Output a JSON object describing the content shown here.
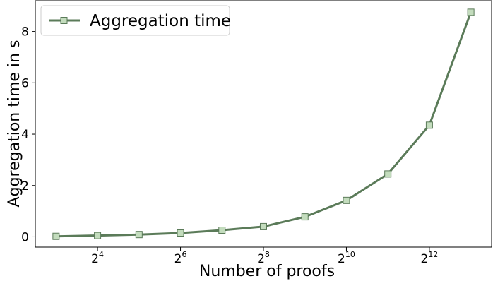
{
  "chart_data": {
    "type": "line",
    "xlabel": "Number of proofs",
    "ylabel": "Aggregation time in s",
    "x_scale": "log2",
    "x": [
      8,
      16,
      32,
      64,
      128,
      256,
      512,
      1024,
      2048,
      4096,
      8192
    ],
    "x_ticks": [
      {
        "base": "2",
        "exp": "4"
      },
      {
        "base": "2",
        "exp": "6"
      },
      {
        "base": "2",
        "exp": "8"
      },
      {
        "base": "2",
        "exp": "10"
      },
      {
        "base": "2",
        "exp": "12"
      }
    ],
    "y_ticks": [
      "0",
      "2",
      "4",
      "6",
      "8"
    ],
    "ylim": [
      -0.4,
      9.2
    ],
    "series": [
      {
        "name": "Aggregation time",
        "values": [
          0.02,
          0.05,
          0.09,
          0.15,
          0.26,
          0.4,
          0.78,
          1.42,
          2.45,
          4.35,
          8.75
        ]
      }
    ],
    "legend_position": "top-left",
    "grid": false,
    "colors": {
      "line": "#5b7b59",
      "marker_fill": "#c3dcbd",
      "marker_edge": "#5b7b59"
    }
  }
}
